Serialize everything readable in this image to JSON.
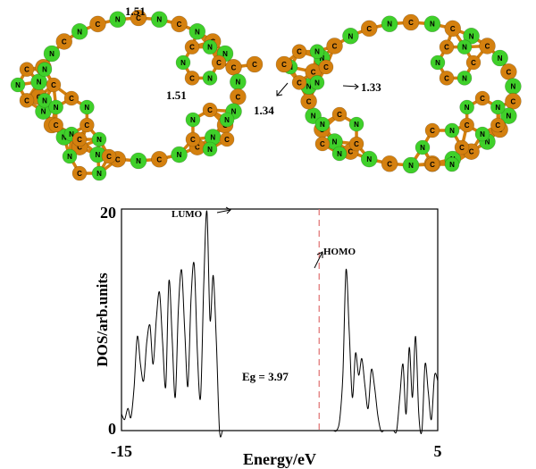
{
  "molecule": {
    "bond_labels": [
      "1.51",
      "1.51",
      "1.34",
      "1.33"
    ],
    "atom_symbols": {
      "carbon": "C",
      "nitrogen": "N"
    },
    "colors": {
      "carbon": "#d4800f",
      "nitrogen": "#3fd02a",
      "bond": "#d4800f"
    }
  },
  "chart_data": {
    "type": "line",
    "xlabel": "Energy/eV",
    "ylabel": "DOS/arb.units",
    "xlim": [
      -15,
      5
    ],
    "ylim": [
      0,
      20
    ],
    "x_ticks": [
      "-15",
      "5"
    ],
    "y_ticks": [
      "20",
      "0"
    ],
    "annotations": [
      {
        "text": "LUMO",
        "x": -10.5,
        "y": 19.5
      },
      {
        "text": "HOMO",
        "x": -6.3,
        "y": 15.5
      },
      {
        "text": "Eg = 3.97",
        "x": -3.0,
        "y": 5
      }
    ],
    "fermi_line": {
      "x": -2.5,
      "style": "dashed",
      "color": "#e07070"
    },
    "series": [
      {
        "color": "#000000",
        "x": [
          -15,
          -14.8,
          -14.6,
          -14.4,
          -14.2,
          -14.0,
          -13.8,
          -13.6,
          -13.4,
          -13.2,
          -13.0,
          -12.8,
          -12.6,
          -12.4,
          -12.2,
          -12.0,
          -11.8,
          -11.6,
          -11.4,
          -11.2,
          -11.0,
          -10.8,
          -10.6,
          -10.4,
          -10.2,
          -10.0,
          -9.8,
          -9.6,
          -9.4,
          -9.2,
          -9.0,
          -8.8,
          -8.6,
          -8.4,
          -8.2,
          -8.0,
          -7.8,
          -7.6,
          -7.4,
          -7.2,
          -7.0,
          -6.8,
          -6.6,
          -6.4,
          -6.2,
          -6.0,
          -5.8,
          -5.6,
          -5.4,
          -5.2,
          -5.0,
          -4.8,
          -4.6,
          -4.4,
          -4.2,
          -4.0,
          -3.8,
          -3.6,
          -3.4,
          -3.2,
          -3.0,
          -2.8,
          -2.6,
          -2.4,
          -2.2,
          -2.0,
          -1.8,
          -1.6,
          -1.4,
          -1.2,
          -1.0,
          -0.8,
          -0.6,
          -0.4,
          -0.2,
          0.0,
          0.2,
          0.4,
          0.6,
          0.8,
          1.0,
          1.2,
          1.4,
          1.6,
          1.8,
          2.0,
          2.2,
          2.4,
          2.6,
          2.8,
          3.0,
          3.2,
          3.4,
          3.6,
          3.8,
          4.0,
          4.2,
          4.4,
          4.6,
          4.8,
          5.0
        ],
        "y": [
          1.5,
          1.0,
          2.0,
          1.2,
          4.0,
          8.5,
          6.0,
          4.5,
          8.0,
          9.5,
          6.0,
          10.0,
          12.5,
          8.0,
          4.0,
          13.5,
          8.5,
          3.0,
          11.0,
          14.5,
          9.0,
          4.0,
          12.0,
          15.0,
          7.0,
          3.0,
          13.0,
          19.8,
          10.0,
          14.0,
          8.0,
          0,
          0,
          0,
          0,
          0,
          0,
          0,
          0,
          0,
          0,
          0,
          0,
          0,
          0,
          0,
          0,
          0,
          0,
          0,
          0,
          0,
          0,
          0,
          0,
          0,
          0,
          0,
          0,
          0,
          0,
          0,
          0,
          0,
          0,
          0,
          0,
          0,
          0,
          1.0,
          5.0,
          14.5,
          9.0,
          3.0,
          7.0,
          5.0,
          6.5,
          4.0,
          2.0,
          5.5,
          4.0,
          1.5,
          0,
          0,
          0,
          0,
          0,
          0,
          3.0,
          6.0,
          1.5,
          7.5,
          3.0,
          8.5,
          1.5,
          0,
          6.0,
          3.5,
          1.0,
          5.0,
          4.5
        ]
      }
    ]
  }
}
